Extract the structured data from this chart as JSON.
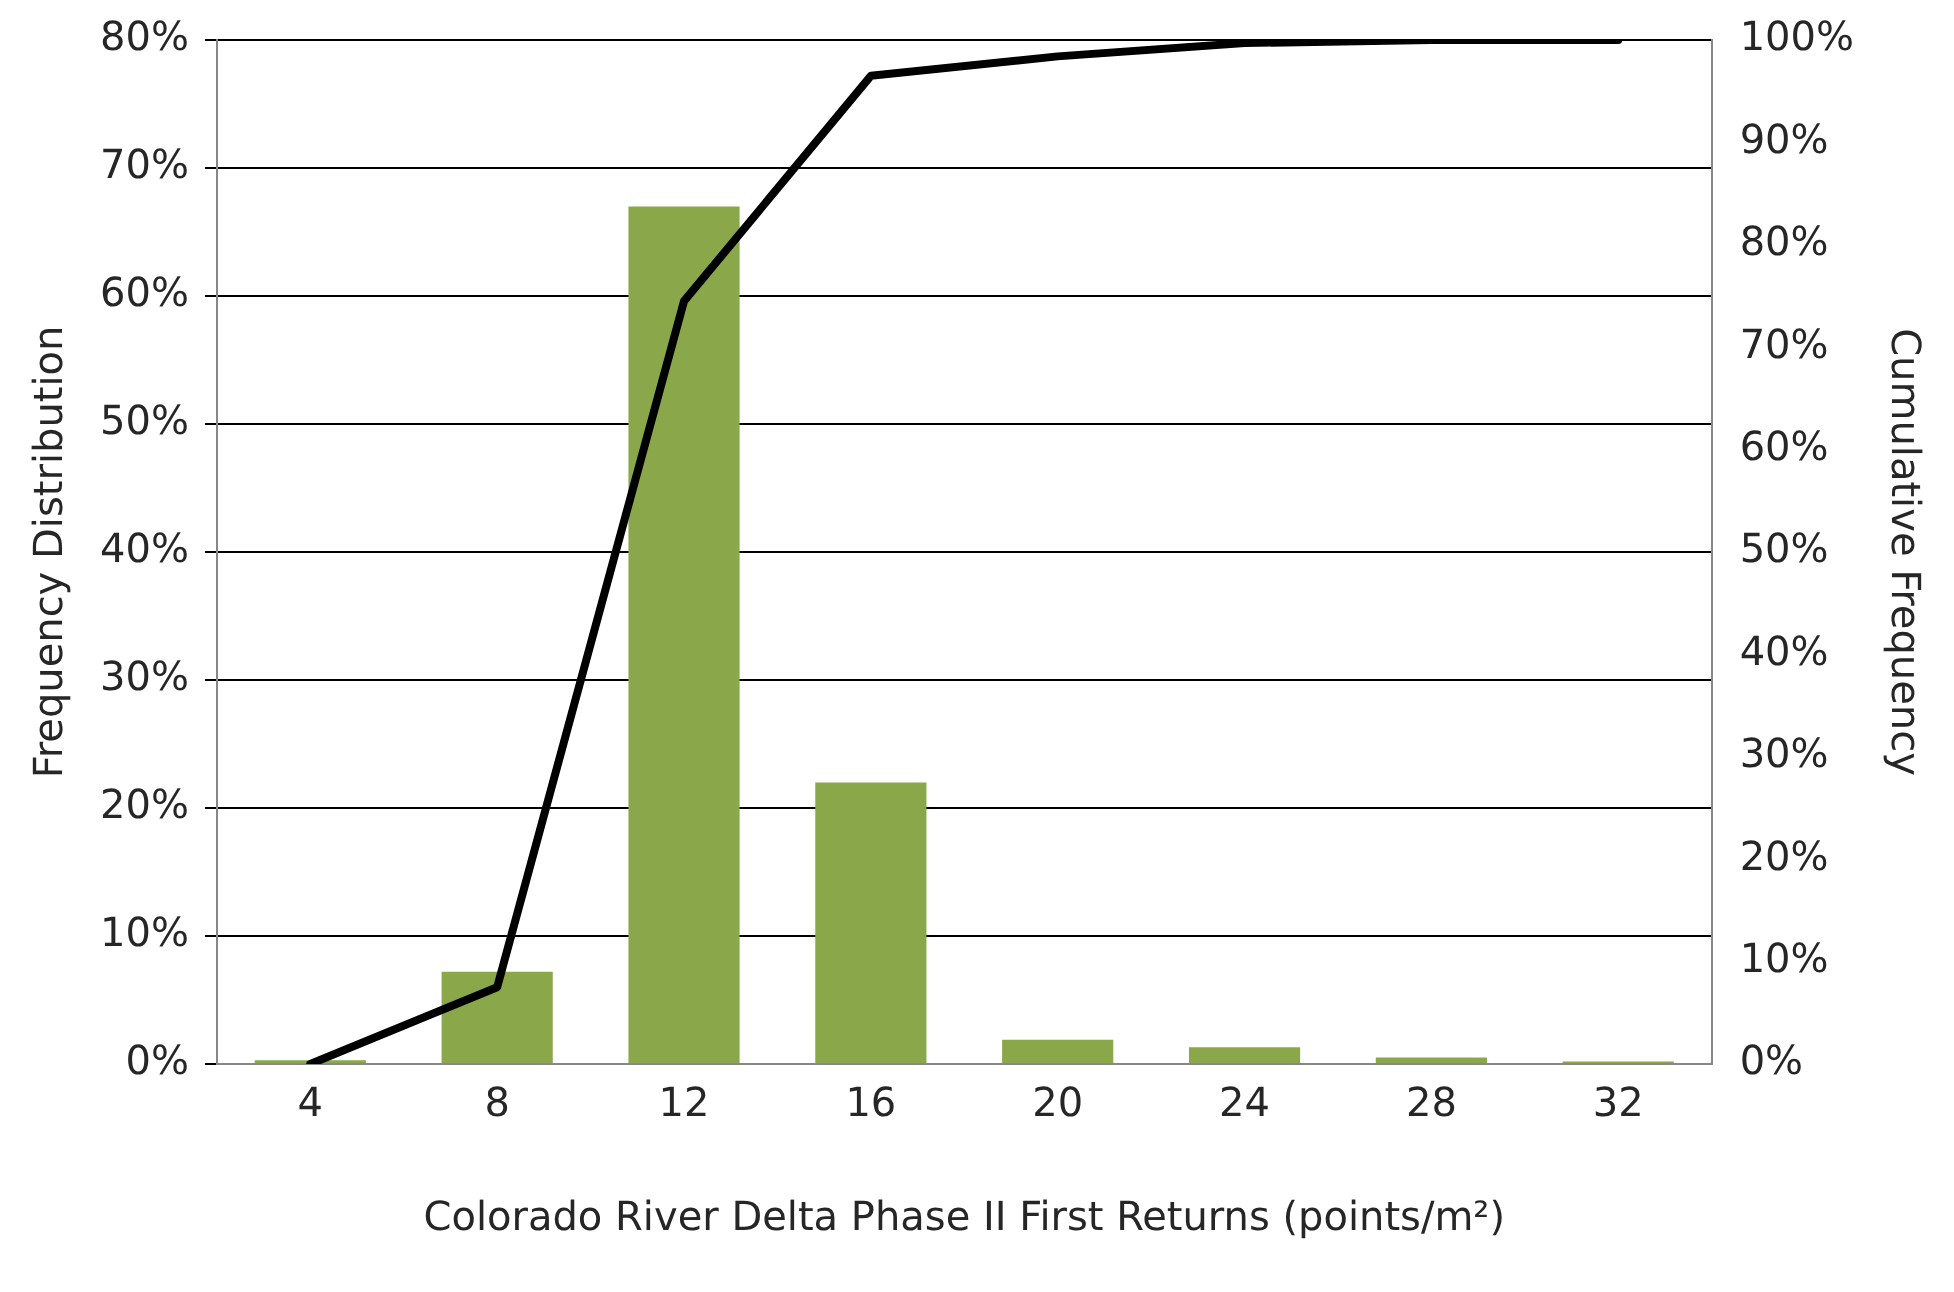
{
  "chart_data": {
    "type": "bar",
    "xlabel": "Colorado River Delta Phase II First Returns (points/m²)",
    "ylabel": "Frequency Distribution",
    "y2label": "Cumulative Frequency",
    "categories": [
      "4",
      "8",
      "12",
      "16",
      "20",
      "24",
      "28",
      "32"
    ],
    "series": [
      {
        "color": "#8aa84a",
        "values": [
          0.3,
          7.2,
          67,
          22,
          1.9,
          1.3,
          0.5,
          0.2
        ]
      },
      {
        "type": "line",
        "axis": "y2",
        "color": "#000000",
        "values": [
          0,
          7.5,
          74.5,
          96.5,
          98.4,
          99.7,
          100,
          100
        ]
      }
    ],
    "ylim": [
      0,
      80
    ],
    "yticks": [
      {
        "value": 0,
        "label": "0%"
      },
      {
        "value": 10,
        "label": "10%"
      },
      {
        "value": 20,
        "label": "20%"
      },
      {
        "value": 30,
        "label": "30%"
      },
      {
        "value": 40,
        "label": "40%"
      },
      {
        "value": 50,
        "label": "50%"
      },
      {
        "value": 60,
        "label": "60%"
      },
      {
        "value": 70,
        "label": "70%"
      },
      {
        "value": 80,
        "label": "80%"
      }
    ],
    "y2lim": [
      0,
      100
    ],
    "y2ticks": [
      {
        "value": 0,
        "label": "0%"
      },
      {
        "value": 10,
        "label": "10%"
      },
      {
        "value": 20,
        "label": "20%"
      },
      {
        "value": 30,
        "label": "30%"
      },
      {
        "value": 40,
        "label": "40%"
      },
      {
        "value": 50,
        "label": "50%"
      },
      {
        "value": 60,
        "label": "60%"
      },
      {
        "value": 70,
        "label": "70%"
      },
      {
        "value": 80,
        "label": "80%"
      },
      {
        "value": 90,
        "label": "90%"
      },
      {
        "value": 100,
        "label": "100%"
      }
    ],
    "grid": "y",
    "legend": false,
    "marker": "none",
    "line_style": "solid"
  }
}
